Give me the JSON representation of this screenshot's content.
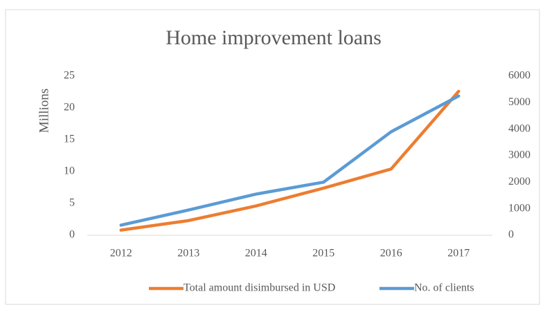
{
  "chart_data": {
    "type": "line",
    "title": "Home improvement loans",
    "y_label": "Millions",
    "categories": [
      "2012",
      "2013",
      "2014",
      "2015",
      "2016",
      "2017"
    ],
    "series": [
      {
        "name": "Total amount disimbursed in USD",
        "color": "#ed7d31",
        "values": [
          0.8,
          2.3,
          4.6,
          7.4,
          10.4,
          22.6
        ]
      },
      {
        "name": "No. of clients",
        "color": "#5b9bd5",
        "axis": "y2",
        "values": [
          380,
          950,
          1550,
          2000,
          3900,
          5250
        ]
      }
    ],
    "ylim": [
      0,
      25
    ],
    "yticks": [
      0,
      5,
      10,
      15,
      20,
      25
    ],
    "y2lim": [
      0,
      6000
    ],
    "y2ticks": [
      0,
      1000,
      2000,
      3000,
      4000,
      5000,
      6000
    ],
    "legend": "bottom"
  }
}
